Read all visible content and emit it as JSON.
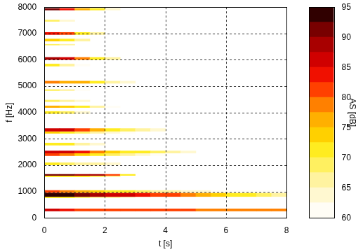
{
  "chart_data": {
    "type": "heatmap",
    "xlabel": "t [s]",
    "ylabel": "f [Hz]",
    "xlim": [
      0,
      8
    ],
    "ylim": [
      0,
      8000
    ],
    "xticks": [
      0,
      2,
      4,
      6,
      8
    ],
    "yticks": [
      0,
      1000,
      2000,
      3000,
      4000,
      5000,
      6000,
      7000,
      8000
    ],
    "grid": true,
    "x_bins": [
      0,
      0.5,
      1,
      1.5,
      2,
      2.5,
      3,
      3.5,
      4,
      4.5,
      5,
      5.5,
      6,
      6.5,
      7,
      7.5,
      8
    ],
    "bands": [
      {
        "f": [
          250,
          350
        ],
        "values": [
          86,
          84,
          82,
          82,
          81,
          81,
          80,
          80,
          80,
          80,
          79,
          79,
          79,
          79,
          78,
          78
        ]
      },
      {
        "f": [
          750,
          800
        ],
        "values": [
          72,
          70,
          68,
          66,
          65,
          64,
          62,
          null,
          null,
          null,
          null,
          null,
          null,
          null,
          null,
          null
        ]
      },
      {
        "f": [
          800,
          950
        ],
        "values": [
          94,
          93,
          91,
          89,
          87,
          85,
          83,
          82,
          80,
          78,
          76,
          74,
          72,
          70,
          68,
          67
        ]
      },
      {
        "f": [
          950,
          1050
        ],
        "values": [
          80,
          78,
          76,
          74,
          72,
          70,
          68,
          66,
          65,
          64,
          63,
          62,
          61,
          60,
          60,
          60
        ]
      },
      {
        "f": [
          1550,
          1600
        ],
        "values": [
          72,
          72,
          70,
          68,
          65,
          null,
          null,
          null,
          null,
          null,
          null,
          null,
          null,
          null,
          null,
          null
        ]
      },
      {
        "f": [
          1600,
          1660
        ],
        "values": [
          90,
          90,
          89,
          88,
          80,
          70,
          null,
          null,
          null,
          null,
          null,
          null,
          null,
          null,
          null,
          null
        ]
      },
      {
        "f": [
          2000,
          2100
        ],
        "values": [
          70,
          69,
          67,
          65,
          63,
          null,
          null,
          null,
          null,
          null,
          null,
          null,
          null,
          null,
          null,
          null
        ]
      },
      {
        "f": [
          2350,
          2450
        ],
        "values": [
          80,
          78,
          74,
          70,
          68,
          66,
          64,
          62,
          null,
          null,
          null,
          null,
          null,
          null,
          null,
          null
        ]
      },
      {
        "f": [
          2450,
          2550
        ],
        "values": [
          87,
          86,
          83,
          78,
          74,
          72,
          70,
          68,
          66,
          64,
          null,
          null,
          null,
          null,
          null,
          null
        ]
      },
      {
        "f": [
          2750,
          2850
        ],
        "values": [
          72,
          70,
          66,
          63,
          null,
          null,
          null,
          null,
          null,
          null,
          null,
          null,
          null,
          null,
          null,
          null
        ]
      },
      {
        "f": [
          3200,
          3280
        ],
        "values": [
          74,
          72,
          68,
          65,
          63,
          62,
          null,
          null,
          null,
          null,
          null,
          null,
          null,
          null,
          null,
          null
        ]
      },
      {
        "f": [
          3280,
          3400
        ],
        "values": [
          87,
          86,
          82,
          76,
          72,
          69,
          66,
          63,
          null,
          null,
          null,
          null,
          null,
          null,
          null,
          null
        ]
      },
      {
        "f": [
          3950,
          4050
        ],
        "values": [
          70,
          68,
          64,
          null,
          null,
          null,
          null,
          null,
          null,
          null,
          null,
          null,
          null,
          null,
          null,
          null
        ]
      },
      {
        "f": [
          4180,
          4260
        ],
        "values": [
          76,
          73,
          70,
          66,
          62,
          null,
          null,
          null,
          null,
          null,
          null,
          null,
          null,
          null,
          null,
          null
        ]
      },
      {
        "f": [
          4400,
          4480
        ],
        "values": [
          69,
          66,
          63,
          null,
          null,
          null,
          null,
          null,
          null,
          null,
          null,
          null,
          null,
          null,
          null,
          null
        ]
      },
      {
        "f": [
          4820,
          4880
        ],
        "values": [
          68,
          65,
          62,
          null,
          null,
          null,
          null,
          null,
          null,
          null,
          null,
          null,
          null,
          null,
          null,
          null
        ]
      },
      {
        "f": [
          5100,
          5200
        ],
        "values": [
          79,
          77,
          75,
          71,
          67,
          64,
          null,
          null,
          null,
          null,
          null,
          null,
          null,
          null,
          null,
          null
        ]
      },
      {
        "f": [
          5750,
          5850
        ],
        "values": [
          70,
          66,
          62,
          null,
          null,
          null,
          null,
          null,
          null,
          null,
          null,
          null,
          null,
          null,
          null,
          null
        ]
      },
      {
        "f": [
          6000,
          6100
        ],
        "values": [
          89,
          85,
          78,
          72,
          66,
          null,
          null,
          null,
          null,
          null,
          null,
          null,
          null,
          null,
          null,
          null
        ]
      },
      {
        "f": [
          6550,
          6600
        ],
        "values": [
          68,
          65,
          null,
          null,
          null,
          null,
          null,
          null,
          null,
          null,
          null,
          null,
          null,
          null,
          null,
          null
        ]
      },
      {
        "f": [
          6700,
          6800
        ],
        "values": [
          74,
          70,
          65,
          null,
          null,
          null,
          null,
          null,
          null,
          null,
          null,
          null,
          null,
          null,
          null,
          null
        ]
      },
      {
        "f": [
          6950,
          7050
        ],
        "values": [
          84,
          80,
          72,
          66,
          null,
          null,
          null,
          null,
          null,
          null,
          null,
          null,
          null,
          null,
          null,
          null
        ]
      },
      {
        "f": [
          7450,
          7520
        ],
        "values": [
          68,
          64,
          null,
          null,
          null,
          null,
          null,
          null,
          null,
          null,
          null,
          null,
          null,
          null,
          null,
          null
        ]
      },
      {
        "f": [
          7880,
          7960
        ],
        "values": [
          92,
          84,
          76,
          70,
          64,
          null,
          null,
          null,
          null,
          null,
          null,
          null,
          null,
          null,
          null,
          null
        ]
      }
    ],
    "colorbar": {
      "label": "AS [dB]",
      "range": [
        60,
        95
      ],
      "ticks": [
        60,
        65,
        70,
        75,
        80,
        85,
        90,
        95
      ]
    }
  }
}
